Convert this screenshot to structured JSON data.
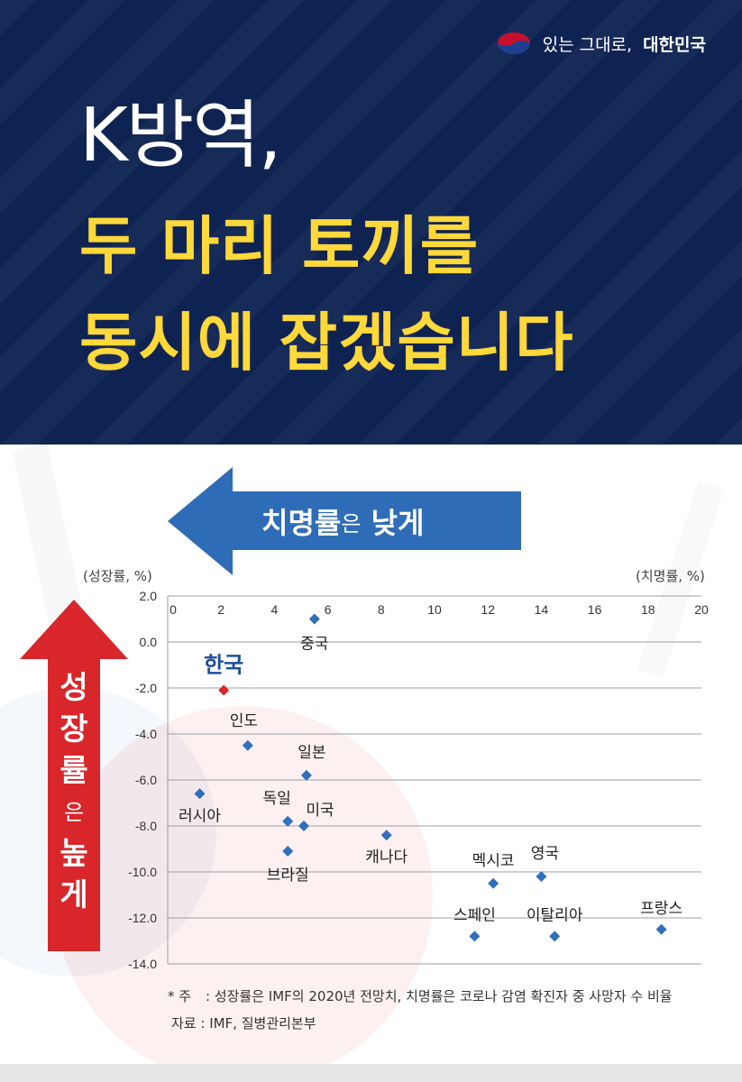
{
  "brand": {
    "tagline_plain": "있는 그대로,",
    "tagline_strong": "대한민국"
  },
  "title": {
    "line1": "K방역,",
    "line2": "두 마리 토끼를",
    "line3": "동시에 잡겠습니다"
  },
  "arrows": {
    "horizontal": {
      "strong": "치명률",
      "small": "은",
      "tail": " 낮게"
    },
    "vertical": {
      "chars": [
        "성",
        "장",
        "률"
      ],
      "small": "은",
      "tail": [
        "높",
        "게"
      ]
    }
  },
  "colors": {
    "header_bg": "#0f2352",
    "title_yellow": "#ffd83a",
    "arrow_blue": "#2f6cb8",
    "arrow_red": "#d8262b",
    "point_blue": "#2f6fbe",
    "point_red": "#d8262b"
  },
  "chart_data": {
    "type": "scatter",
    "xlabel": "(치명률, %)",
    "ylabel": "(성장률, %)",
    "xlim": [
      0,
      20
    ],
    "ylim": [
      -14.0,
      2.0
    ],
    "x_ticks": [
      "0",
      "2",
      "4",
      "6",
      "8",
      "10",
      "12",
      "14",
      "16",
      "18",
      "20"
    ],
    "y_ticks": [
      "2.0",
      "0.0",
      "-2.0",
      "-4.0",
      "-6.0",
      "-8.0",
      "-10.0",
      "-12.0",
      "-14.0"
    ],
    "x_axis_position": "top",
    "grid": "horizontal",
    "points": [
      {
        "label": "중국",
        "x": 5.5,
        "y": 1.0
      },
      {
        "label": "한국",
        "x": 2.1,
        "y": -2.1,
        "highlight": true
      },
      {
        "label": "인도",
        "x": 3.0,
        "y": -4.5
      },
      {
        "label": "일본",
        "x": 5.2,
        "y": -5.8
      },
      {
        "label": "러시아",
        "x": 1.2,
        "y": -6.6
      },
      {
        "label": "독일",
        "x": 4.5,
        "y": -7.8
      },
      {
        "label": "미국",
        "x": 5.1,
        "y": -8.0
      },
      {
        "label": "브라질",
        "x": 4.5,
        "y": -9.1
      },
      {
        "label": "캐나다",
        "x": 8.2,
        "y": -8.4
      },
      {
        "label": "멕시코",
        "x": 12.2,
        "y": -10.5
      },
      {
        "label": "영국",
        "x": 14.0,
        "y": -10.2
      },
      {
        "label": "스페인",
        "x": 11.5,
        "y": -12.8
      },
      {
        "label": "이탈리아",
        "x": 14.5,
        "y": -12.8
      },
      {
        "label": "프랑스",
        "x": 18.5,
        "y": -12.5
      }
    ]
  },
  "footnotes": {
    "note_key": "* 주",
    "note_text": ": 성장률은 IMF의 2020년 전망치, 치명률은 코로나 감염 확진자 중 사망자 수 비율",
    "source": "자료 : IMF, 질병관리본부"
  }
}
